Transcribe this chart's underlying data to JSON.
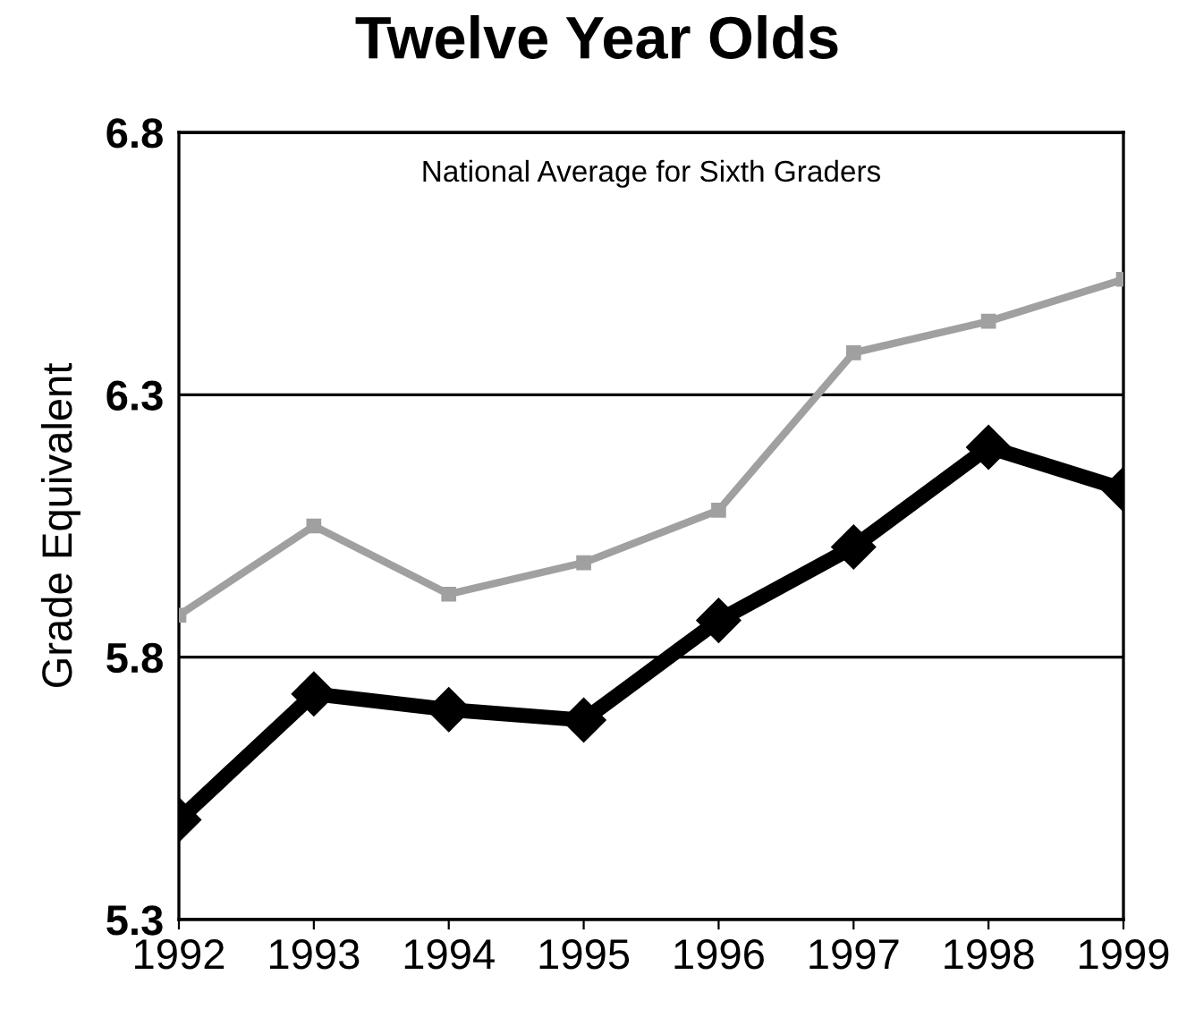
{
  "chart_data": {
    "type": "line",
    "title": "Twelve Year Olds",
    "ylabel": "Grade Equivalent",
    "annotations": [
      "National Average for Sixth Graders"
    ],
    "categories": [
      "1992",
      "1993",
      "1994",
      "1995",
      "1996",
      "1997",
      "1998",
      "1999"
    ],
    "series": [
      {
        "color": "#a0a0a0",
        "marker": "square",
        "values": [
          5.88,
          6.05,
          5.92,
          5.98,
          6.08,
          6.38,
          6.44,
          6.52
        ]
      },
      {
        "color": "#000000",
        "marker": "diamond",
        "values": [
          5.49,
          5.73,
          5.7,
          5.68,
          5.87,
          6.01,
          6.2,
          6.12
        ]
      }
    ],
    "ylim": [
      5.3,
      6.8
    ],
    "yticks": [
      5.3,
      5.8,
      6.3,
      6.8
    ],
    "grid": "y",
    "line_style": "solid"
  }
}
